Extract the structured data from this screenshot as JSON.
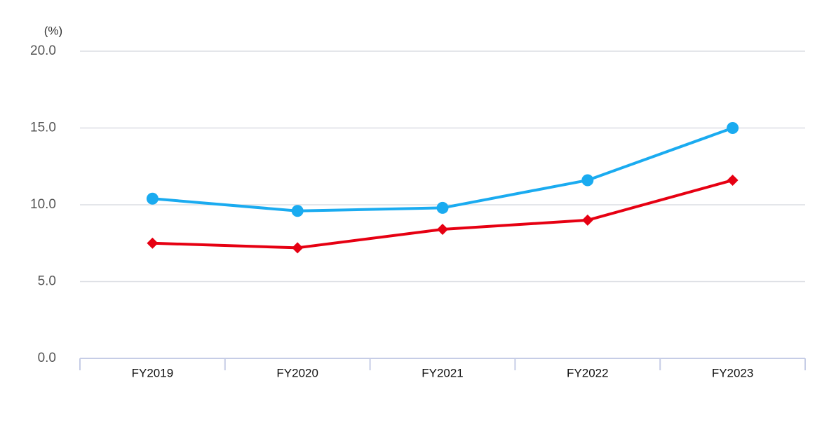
{
  "chart_data": {
    "type": "line",
    "y_label": "(%)",
    "categories": [
      "FY2019",
      "FY2020",
      "FY2021",
      "FY2022",
      "FY2023"
    ],
    "series": [
      {
        "color": "#1aabf0",
        "marker": "circle",
        "values": [
          10.4,
          9.6,
          9.8,
          11.6,
          15.0
        ]
      },
      {
        "color": "#e60012",
        "marker": "diamond",
        "values": [
          7.5,
          7.2,
          8.4,
          9.0,
          11.6
        ]
      }
    ],
    "ylim": [
      0,
      20
    ],
    "yticks": [
      {
        "value": 0,
        "label": "0.0"
      },
      {
        "value": 5,
        "label": "5.0"
      },
      {
        "value": 10,
        "label": "10.0"
      },
      {
        "value": 15,
        "label": "15.0"
      },
      {
        "value": 20,
        "label": "20.0"
      }
    ],
    "grid": true
  }
}
